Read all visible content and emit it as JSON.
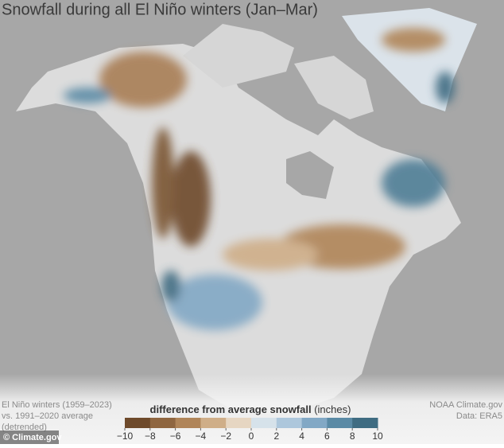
{
  "header": {
    "title": "Snowfall during all El Niño winters (Jan–Mar)"
  },
  "note": [
    "El Niño winters (1959–2023)",
    "vs. 1991–2020 average",
    "(detrended)"
  ],
  "credits": [
    "NOAA Climate.gov",
    "Data: ERA5"
  ],
  "watermark": "© Climate.gov",
  "colorbar": {
    "label": "difference from average snowfall",
    "unit": "(inches)",
    "ticks": [
      {
        "value": -10,
        "label": "−10"
      },
      {
        "value": -8,
        "label": "−8"
      },
      {
        "value": -6,
        "label": "−6"
      },
      {
        "value": -4,
        "label": "−4"
      },
      {
        "value": -2,
        "label": "−2"
      },
      0,
      2,
      4,
      6,
      8,
      10
    ],
    "colors": [
      "#6e4a2b",
      "#8f6640",
      "#b08559",
      "#cfae88",
      "#e6d6c2",
      "#d6e2ea",
      "#adc7dc",
      "#82a8c5",
      "#5a8aa5",
      "#3f6c82"
    ]
  }
}
